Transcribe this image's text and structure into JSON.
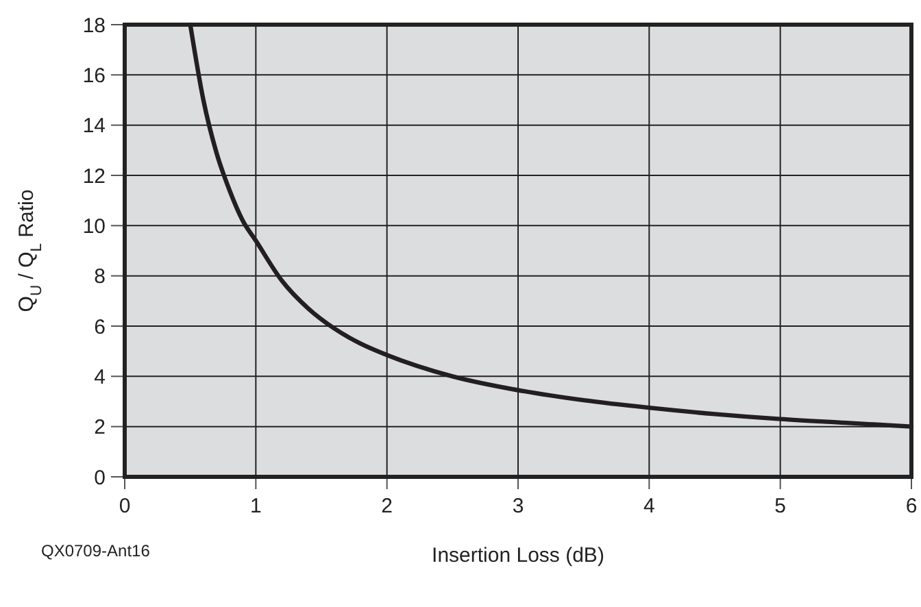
{
  "chart_data": {
    "type": "line",
    "xlabel": "Insertion Loss (dB)",
    "ylabel": "Q$_{U}$ / Q$_{L}$ Ratio",
    "annotations": [
      "QX0709-Ant16"
    ],
    "x": [
      0.5,
      0.6,
      0.7,
      0.8,
      0.9,
      1.0,
      1.2,
      1.4,
      1.6,
      1.8,
      2.0,
      2.5,
      3.0,
      3.5,
      4.0,
      4.5,
      5.0,
      5.5,
      6.0
    ],
    "series": [
      {
        "color": "#231f20",
        "values": [
          18,
          15,
          12.9,
          11.4,
          10.2,
          9.4,
          7.8,
          6.7,
          5.9,
          5.3,
          4.85,
          4.0,
          3.45,
          3.05,
          2.75,
          2.5,
          2.3,
          2.15,
          2.0
        ]
      }
    ],
    "xlim": [
      0,
      6
    ],
    "xticks": [
      0,
      1,
      2,
      3,
      4,
      5,
      6
    ],
    "ylim": [
      0,
      18
    ],
    "yticks": [
      0,
      2,
      4,
      6,
      8,
      10,
      12,
      14,
      16,
      18
    ],
    "grid": true,
    "marker": "none",
    "line_style": "solid"
  }
}
